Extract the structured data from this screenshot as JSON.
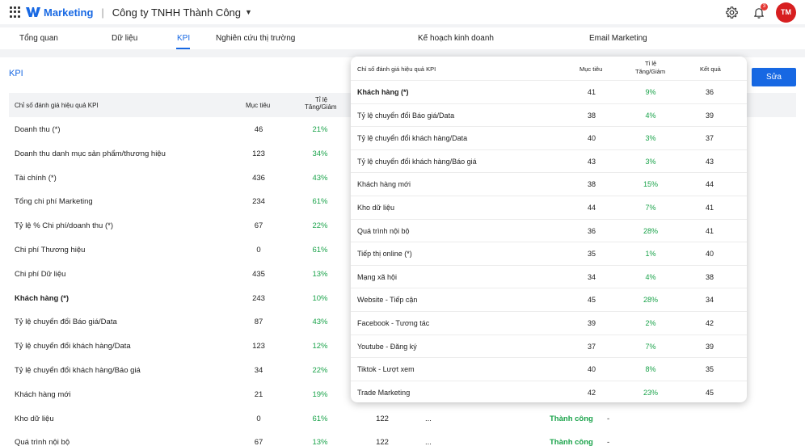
{
  "topbar": {
    "brand": "Marketing",
    "separator": "|",
    "company": "Công ty TNHH Thành Công",
    "notification_count": "3",
    "avatar_initials": "TM"
  },
  "tabs": [
    {
      "label": "Tổng quan"
    },
    {
      "label": "Dữ liệu"
    },
    {
      "label": "KPI"
    },
    {
      "label": "Nghiên cứu thị trường"
    },
    {
      "label": "Kế hoạch kinh doanh"
    },
    {
      "label": "Email Marketing"
    }
  ],
  "panel": {
    "title": "KPI",
    "edit_label": "Sửa"
  },
  "main_table": {
    "headers": {
      "name": "Chỉ số đánh giá hiệu quả KPI",
      "target": "Mục tiêu",
      "ratio_line1": "Tỉ lệ",
      "ratio_line2": "Tăng/Giảm"
    },
    "rows": [
      {
        "name": "Doanh thu (*)",
        "target": "46",
        "ratio": "21%"
      },
      {
        "name": "Doanh thu danh mục sản phẩm/thương hiệu",
        "target": "123",
        "ratio": "34%"
      },
      {
        "name": "Tài chính (*)",
        "target": "436",
        "ratio": "43%"
      },
      {
        "name": "Tổng chi phí Marketing",
        "target": "234",
        "ratio": "61%"
      },
      {
        "name": "Tỷ lệ % Chi phí/doanh thu (*)",
        "target": "67",
        "ratio": "22%"
      },
      {
        "name": "Chi phí Thương hiệu",
        "target": "0",
        "ratio": "61%"
      },
      {
        "name": "Chi phí Dữ liệu",
        "target": "435",
        "ratio": "13%"
      },
      {
        "name": "Khách hàng (*)",
        "target": "243",
        "ratio": "10%"
      },
      {
        "name": "Tỷ lệ chuyển đổi Báo giá/Data",
        "target": "87",
        "ratio": "43%"
      },
      {
        "name": "Tỷ lệ chuyển đổi khách hàng/Data",
        "target": "123",
        "ratio": "12%"
      },
      {
        "name": "Tỷ lệ chuyển đổi khách hàng/Báo giá",
        "target": "34",
        "ratio": "22%"
      },
      {
        "name": "Khách hàng mới",
        "target": "21",
        "ratio": "19%"
      },
      {
        "name": "Kho dữ liệu",
        "target": "0",
        "ratio": "61%",
        "result": "122",
        "more": "...",
        "status": "Thành công",
        "extra": "-"
      },
      {
        "name": "Quá trình nội bộ",
        "target": "67",
        "ratio": "13%",
        "result": "122",
        "more": "...",
        "status": "Thành công",
        "extra": "-"
      }
    ]
  },
  "popup": {
    "headers": {
      "name": "Chỉ số đánh giá hiệu quả KPI",
      "target": "Mục tiêu",
      "ratio_line1": "Tỉ lệ",
      "ratio_line2": "Tăng/Giảm",
      "result": "Kết quả"
    },
    "rows": [
      {
        "name": "Khách hàng (*)",
        "target": "41",
        "ratio": "9%",
        "result": "36"
      },
      {
        "name": "Tỷ lệ chuyển đổi Báo giá/Data",
        "target": "38",
        "ratio": "4%",
        "result": "39"
      },
      {
        "name": "Tỷ lệ chuyển đổi khách hàng/Data",
        "target": "40",
        "ratio": "3%",
        "result": "37"
      },
      {
        "name": "Tỷ lệ chuyển đổi khách hàng/Báo giá",
        "target": "43",
        "ratio": "3%",
        "result": "43"
      },
      {
        "name": "Khách hàng mới",
        "target": "38",
        "ratio": "15%",
        "result": "44"
      },
      {
        "name": "Kho dữ liệu",
        "target": "44",
        "ratio": "7%",
        "result": "41"
      },
      {
        "name": "Quá trình nội bộ",
        "target": "36",
        "ratio": "28%",
        "result": "41"
      },
      {
        "name": "Tiếp thị online (*)",
        "target": "35",
        "ratio": "1%",
        "result": "40"
      },
      {
        "name": "Mạng xã hội",
        "target": "34",
        "ratio": "4%",
        "result": "38"
      },
      {
        "name": "Website - Tiếp cận",
        "target": "45",
        "ratio": "28%",
        "result": "34"
      },
      {
        "name": "Facebook - Tương tác",
        "target": "39",
        "ratio": "2%",
        "result": "42"
      },
      {
        "name": "Youtube - Đăng ký",
        "target": "37",
        "ratio": "7%",
        "result": "39"
      },
      {
        "name": "Tiktok - Lượt xem",
        "target": "40",
        "ratio": "8%",
        "result": "35"
      },
      {
        "name": "Trade Marketing",
        "target": "42",
        "ratio": "23%",
        "result": "45"
      }
    ]
  }
}
